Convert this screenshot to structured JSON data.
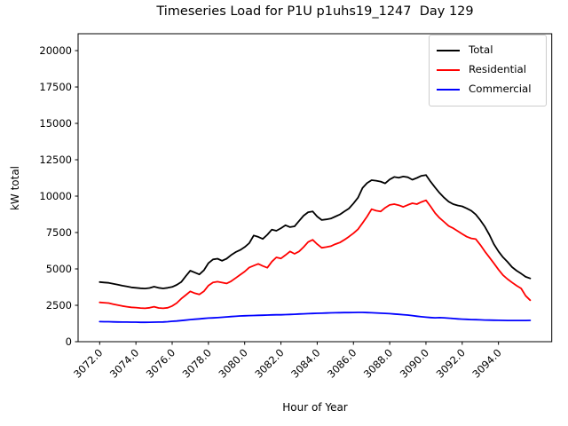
{
  "chart_data": {
    "type": "line",
    "title": "Timeseries Load for P1U p1uhs19_1247  Day 129",
    "xlabel": "Hour of Year",
    "ylabel": "kW total",
    "xlim": [
      3070.81,
      3096.94
    ],
    "ylim": [
      0,
      21160
    ],
    "x_start": 3072.0,
    "x_step": 0.25,
    "grid": false,
    "legend_position": "upper right",
    "xticks": [
      3072.0,
      3074.0,
      3076.0,
      3078.0,
      3080.0,
      3082.0,
      3084.0,
      3086.0,
      3088.0,
      3090.0,
      3092.0,
      3094.0
    ],
    "xtick_labels": [
      "3072.0",
      "3074.0",
      "3076.0",
      "3078.0",
      "3080.0",
      "3082.0",
      "3084.0",
      "3086.0",
      "3088.0",
      "3090.0",
      "3092.0",
      "3094.0"
    ],
    "yticks": [
      0,
      2500,
      5000,
      7500,
      10000,
      12500,
      15000,
      17500,
      20000
    ],
    "ytick_labels": [
      "0",
      "2500",
      "5000",
      "7500",
      "10000",
      "12500",
      "15000",
      "17500",
      "20000"
    ],
    "series": [
      {
        "name": "Total",
        "color": "#000000",
        "values": [
          4100,
          4070,
          4040,
          3980,
          3920,
          3850,
          3790,
          3730,
          3700,
          3670,
          3650,
          3690,
          3780,
          3700,
          3660,
          3700,
          3760,
          3900,
          4100,
          4500,
          4880,
          4750,
          4620,
          4900,
          5400,
          5650,
          5700,
          5560,
          5700,
          5950,
          6150,
          6300,
          6500,
          6770,
          7300,
          7200,
          7060,
          7350,
          7700,
          7620,
          7800,
          8000,
          7870,
          7930,
          8300,
          8660,
          8900,
          8950,
          8600,
          8360,
          8400,
          8460,
          8600,
          8740,
          8950,
          9150,
          9500,
          9900,
          10570,
          10900,
          11100,
          11060,
          11000,
          10880,
          11150,
          11320,
          11260,
          11350,
          11300,
          11130,
          11250,
          11400,
          11450,
          11000,
          10600,
          10220,
          9900,
          9620,
          9450,
          9360,
          9300,
          9160,
          9000,
          8740,
          8350,
          7900,
          7350,
          6700,
          6200,
          5800,
          5480,
          5120,
          4880,
          4680,
          4460,
          4350
        ]
      },
      {
        "name": "Residential",
        "color": "#ff0000",
        "values": [
          2700,
          2680,
          2650,
          2580,
          2510,
          2450,
          2400,
          2360,
          2340,
          2310,
          2290,
          2330,
          2400,
          2320,
          2290,
          2330,
          2450,
          2650,
          2950,
          3200,
          3455,
          3330,
          3250,
          3460,
          3860,
          4065,
          4125,
          4060,
          4000,
          4150,
          4370,
          4600,
          4815,
          5100,
          5225,
          5345,
          5200,
          5080,
          5500,
          5795,
          5720,
          5950,
          6200,
          6040,
          6200,
          6500,
          6850,
          7000,
          6700,
          6450,
          6500,
          6560,
          6700,
          6810,
          7000,
          7215,
          7450,
          7725,
          8150,
          8600,
          9105,
          9000,
          8945,
          9200,
          9400,
          9450,
          9380,
          9260,
          9400,
          9510,
          9450,
          9600,
          9715,
          9300,
          8840,
          8500,
          8230,
          7950,
          7800,
          7600,
          7400,
          7215,
          7100,
          7050,
          6650,
          6200,
          5800,
          5385,
          4950,
          4570,
          4300,
          4065,
          3850,
          3660,
          3150,
          2845
        ]
      },
      {
        "name": "Commercial",
        "color": "#0000ff",
        "values": [
          1380,
          1375,
          1370,
          1360,
          1355,
          1350,
          1345,
          1340,
          1340,
          1330,
          1330,
          1335,
          1340,
          1345,
          1355,
          1370,
          1400,
          1420,
          1450,
          1480,
          1520,
          1545,
          1570,
          1595,
          1620,
          1635,
          1650,
          1675,
          1700,
          1725,
          1745,
          1770,
          1780,
          1790,
          1800,
          1810,
          1820,
          1830,
          1840,
          1845,
          1850,
          1860,
          1870,
          1885,
          1900,
          1915,
          1930,
          1940,
          1950,
          1960,
          1970,
          1980,
          1990,
          1995,
          2000,
          2000,
          2005,
          2010,
          2010,
          2000,
          1990,
          1975,
          1960,
          1945,
          1930,
          1905,
          1880,
          1855,
          1830,
          1790,
          1750,
          1715,
          1680,
          1660,
          1640,
          1655,
          1640,
          1615,
          1590,
          1570,
          1550,
          1535,
          1520,
          1510,
          1500,
          1490,
          1480,
          1475,
          1470,
          1465,
          1460,
          1458,
          1455,
          1455,
          1460,
          1465
        ]
      }
    ]
  }
}
